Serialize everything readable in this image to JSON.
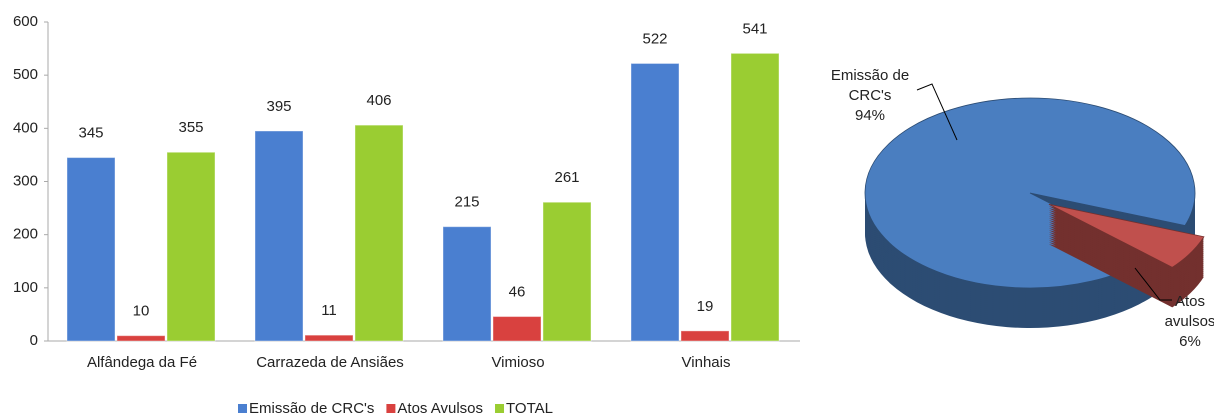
{
  "chart_data": [
    {
      "type": "bar",
      "categories": [
        "Alfândega da Fé",
        "Carrazeda de Ansiães",
        "Vimioso",
        "Vinhais"
      ],
      "series": [
        {
          "name": "Emissão de CRC's",
          "color": "#4a7fd0",
          "values": [
            345,
            395,
            215,
            522
          ]
        },
        {
          "name": "Atos Avulsos",
          "color": "#d9413f",
          "values": [
            10,
            11,
            46,
            19
          ]
        },
        {
          "name": "TOTAL",
          "color": "#9acd32",
          "values": [
            355,
            406,
            261,
            541
          ]
        }
      ],
      "ylim": [
        0,
        600
      ],
      "yticks": [
        0,
        100,
        200,
        300,
        400,
        500,
        600
      ],
      "legend": "bottom"
    },
    {
      "type": "pie",
      "categories": [
        "Emissão de CRC's",
        "Atos avulsos"
      ],
      "values": [
        94,
        6
      ],
      "value_labels": [
        "94%",
        "6%"
      ],
      "colors": [
        "#4a7ec0",
        "#c0504d"
      ]
    }
  ]
}
